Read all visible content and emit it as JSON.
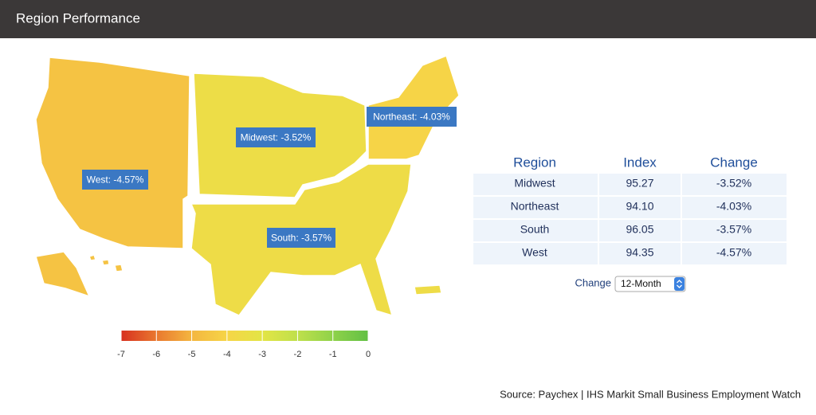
{
  "header": {
    "title": "Region Performance"
  },
  "map": {
    "regions": [
      {
        "label": "West: -4.57%",
        "value": -4.57
      },
      {
        "label": "Midwest: -3.52%",
        "value": -3.52
      },
      {
        "label": "South: -3.57%",
        "value": -3.57
      },
      {
        "label": "Northeast: -4.03%",
        "value": -4.03
      }
    ],
    "legend": {
      "ticks": [
        -7,
        -6,
        -5,
        -4,
        -3,
        -2,
        -1,
        0
      ],
      "colors": [
        "#d7301f",
        "#e9782f",
        "#f4b640",
        "#f6d547",
        "#e3e546",
        "#bfe04b",
        "#8fd24a",
        "#62c044"
      ]
    }
  },
  "table": {
    "headers": [
      "Region",
      "Index",
      "Change"
    ],
    "rows": [
      [
        "Midwest",
        "95.27",
        "-3.52%"
      ],
      [
        "Northeast",
        "94.10",
        "-4.03%"
      ],
      [
        "South",
        "96.05",
        "-3.57%"
      ],
      [
        "West",
        "94.35",
        "-4.57%"
      ]
    ]
  },
  "control": {
    "label": "Change",
    "selected": "12-Month"
  },
  "source": "Source: Paychex | IHS Markit Small Business Employment Watch"
}
